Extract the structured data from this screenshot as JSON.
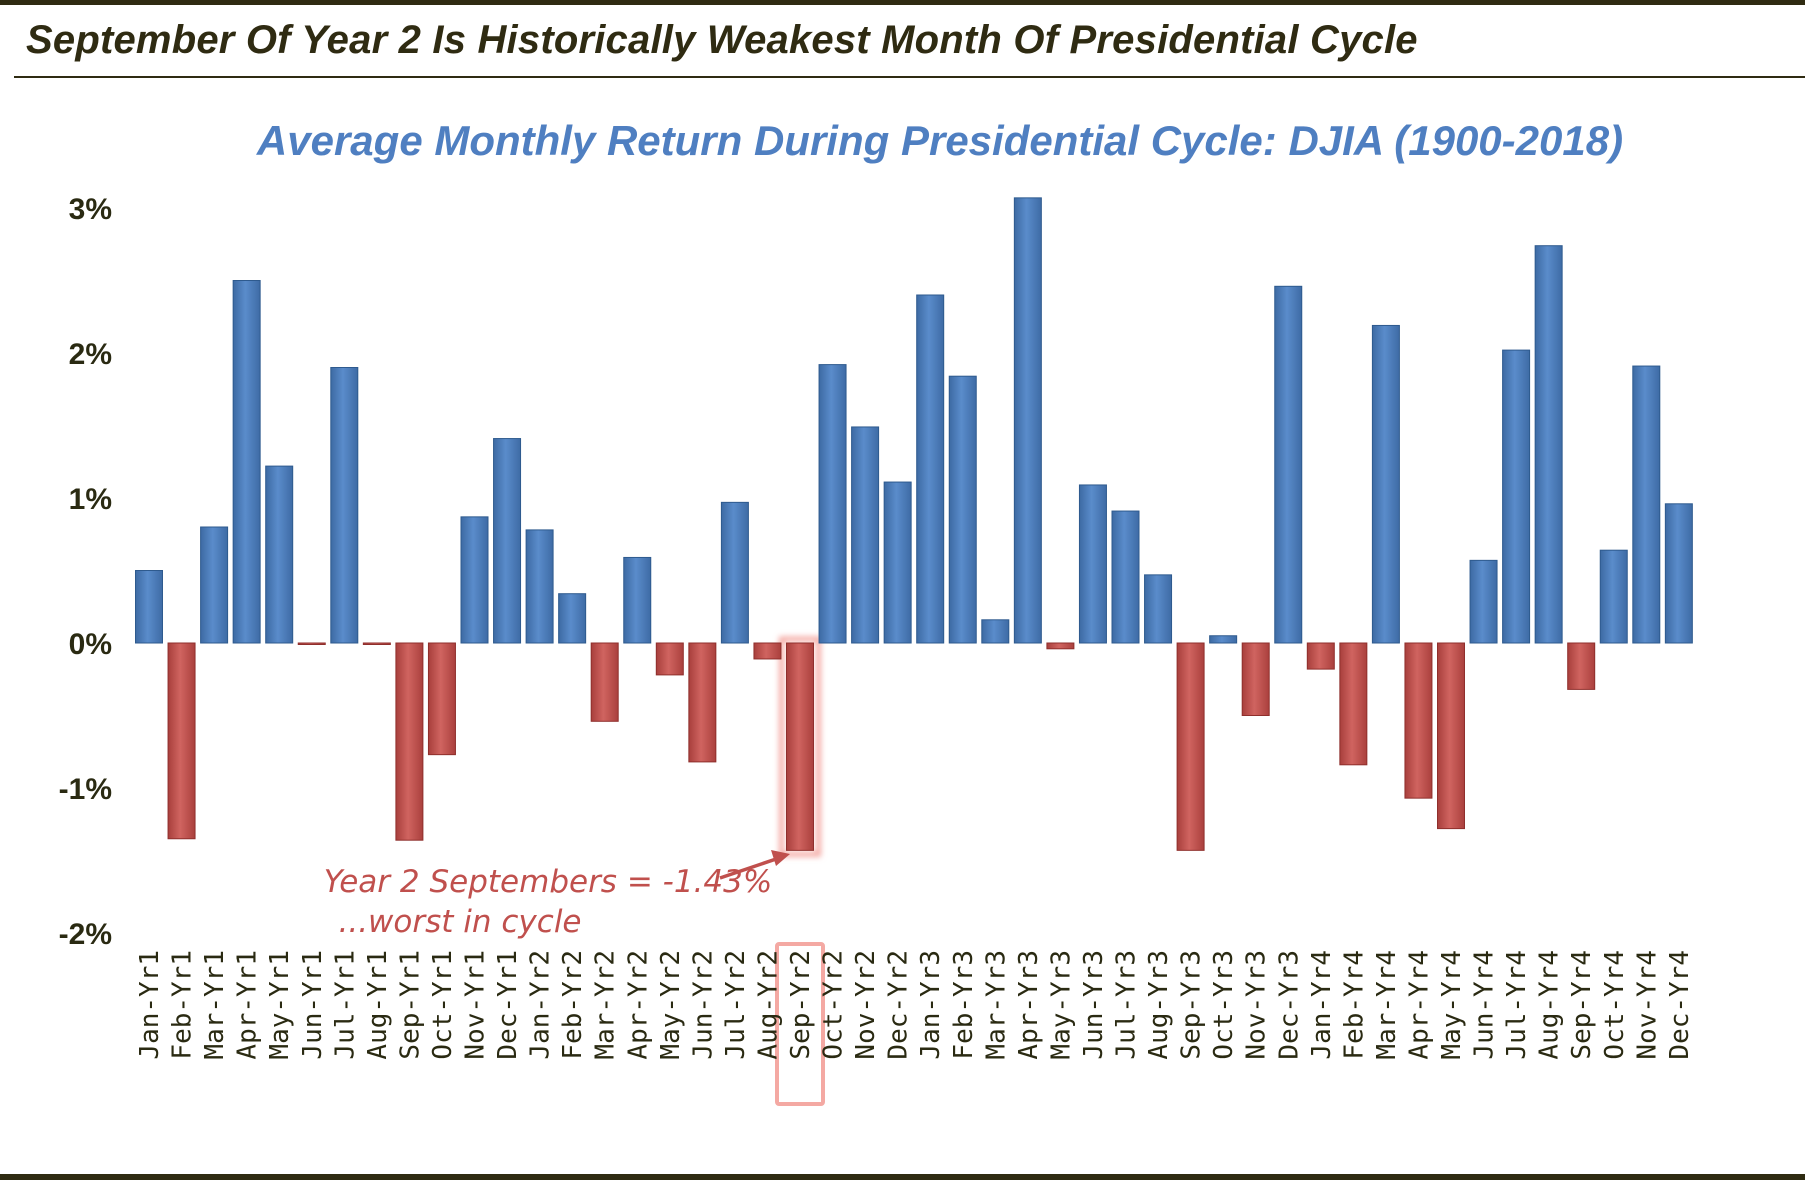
{
  "page": {
    "headline": "September Of Year 2 Is Historically Weakest Month Of Presidential Cycle"
  },
  "colors": {
    "positive": "#4f81bd",
    "negative": "#c0504d",
    "title": "#4f7fc1",
    "dark": "#2f2b12",
    "highlight": "#f4a9a3"
  },
  "chart_data": {
    "type": "bar",
    "title": "Average Monthly Return During Presidential Cycle:  DJIA (1900-2018)",
    "xlabel": "",
    "ylabel": "",
    "unit": "%",
    "ylim": [
      -2,
      3
    ],
    "yticks": [
      3,
      2,
      1,
      0,
      -1,
      -2
    ],
    "ytick_labels": [
      "3%",
      "2%",
      "1%",
      "0%",
      "-1%",
      "-2%"
    ],
    "grid": false,
    "legend": "none",
    "categories": [
      "Jan-Yr1",
      "Feb-Yr1",
      "Mar-Yr1",
      "Apr-Yr1",
      "May-Yr1",
      "Jun-Yr1",
      "Jul-Yr1",
      "Aug-Yr1",
      "Sep-Yr1",
      "Oct-Yr1",
      "Nov-Yr1",
      "Dec-Yr1",
      "Jan-Yr2",
      "Feb-Yr2",
      "Mar-Yr2",
      "Apr-Yr2",
      "May-Yr2",
      "Jun-Yr2",
      "Jul-Yr2",
      "Aug-Yr2",
      "Sep-Yr2",
      "Oct-Yr2",
      "Nov-Yr2",
      "Dec-Yr2",
      "Jan-Yr3",
      "Feb-Yr3",
      "Mar-Yr3",
      "Apr-Yr3",
      "May-Yr3",
      "Jun-Yr3",
      "Jul-Yr3",
      "Aug-Yr3",
      "Sep-Yr3",
      "Oct-Yr3",
      "Nov-Yr3",
      "Dec-Yr3",
      "Jan-Yr4",
      "Feb-Yr4",
      "Mar-Yr4",
      "Apr-Yr4",
      "May-Yr4",
      "Jun-Yr4",
      "Jul-Yr4",
      "Aug-Yr4",
      "Sep-Yr4",
      "Oct-Yr4",
      "Nov-Yr4",
      "Dec-Yr4"
    ],
    "values": [
      0.5,
      -1.35,
      0.8,
      2.5,
      1.22,
      -0.01,
      1.9,
      -0.01,
      -1.36,
      -0.77,
      0.87,
      1.41,
      0.78,
      0.34,
      -0.54,
      0.59,
      -0.22,
      -0.82,
      0.97,
      -0.11,
      -1.43,
      1.92,
      1.49,
      1.11,
      2.4,
      1.84,
      0.16,
      3.07,
      -0.04,
      1.09,
      0.91,
      0.47,
      -1.43,
      0.05,
      -0.5,
      2.46,
      -0.18,
      -0.84,
      2.19,
      -1.07,
      -1.28,
      0.57,
      2.02,
      2.74,
      -0.32,
      0.64,
      1.91,
      0.96
    ],
    "highlight_category": "Sep-Yr2",
    "annotation": {
      "line1": "Year 2 Septembers = -1.43%",
      "line2": "...worst in cycle",
      "target": "Sep-Yr2"
    }
  }
}
